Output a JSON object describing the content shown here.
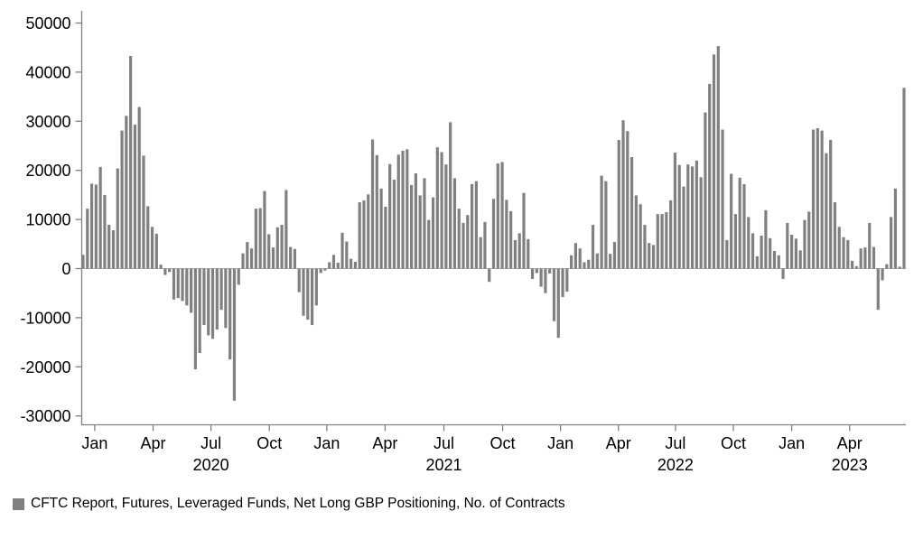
{
  "chart_data": {
    "type": "bar",
    "title": "",
    "description": "Weekly net long GBP positioning of leveraged funds (CFTC futures report), number of contracts",
    "frequency": "weekly",
    "start_date_approx": "2019-12-10",
    "bar_color": "#808080",
    "axis_color": "#808080",
    "zero_line_color": "#aaaaaa",
    "ylim": [
      -30000,
      50000
    ],
    "grid": false,
    "y_axis": {
      "ticks": [
        50000,
        40000,
        30000,
        20000,
        10000,
        0,
        -10000,
        -20000,
        -30000
      ]
    },
    "x_axis": {
      "month_ticks": [
        {
          "label": "Jan",
          "week_index": 2.7
        },
        {
          "label": "Apr",
          "week_index": 16.2
        },
        {
          "label": "Jul",
          "week_index": 29.6
        },
        {
          "label": "Oct",
          "week_index": 43.1
        },
        {
          "label": "Jan",
          "week_index": 56.4
        },
        {
          "label": "Apr",
          "week_index": 69.9
        },
        {
          "label": "Jul",
          "week_index": 83.5
        },
        {
          "label": "Oct",
          "week_index": 97.1
        },
        {
          "label": "Jan",
          "week_index": 110.5
        },
        {
          "label": "Apr",
          "week_index": 123.9
        },
        {
          "label": "Jul",
          "week_index": 137.1
        },
        {
          "label": "Oct",
          "week_index": 150.5
        },
        {
          "label": "Jan",
          "week_index": 164.0
        },
        {
          "label": "Apr",
          "week_index": 177.4
        }
      ],
      "year_labels": [
        {
          "label": "2020",
          "week_index": 29.6
        },
        {
          "label": "2021",
          "week_index": 83.5
        },
        {
          "label": "2022",
          "week_index": 137.1
        },
        {
          "label": "2023",
          "week_index": 177.4
        }
      ]
    },
    "values": [
      2800,
      12200,
      17300,
      17100,
      20700,
      15000,
      8900,
      7800,
      20400,
      28100,
      31100,
      43300,
      29300,
      32900,
      23000,
      12700,
      8500,
      7100,
      800,
      -1300,
      -700,
      -6300,
      -6000,
      -6600,
      -7500,
      -9000,
      -20500,
      -17200,
      -11500,
      -13600,
      -14300,
      -12400,
      -8400,
      -12100,
      -18500,
      -26900,
      -3300,
      3100,
      5400,
      4100,
      12200,
      12300,
      15800,
      7000,
      4300,
      8400,
      8900,
      16000,
      4400,
      4000,
      -4800,
      -9600,
      -10400,
      -11500,
      -7500,
      -900,
      -400,
      1300,
      2800,
      1200,
      7300,
      5500,
      2000,
      1400,
      13500,
      13900,
      15100,
      26300,
      23100,
      16300,
      12600,
      21300,
      18100,
      23200,
      24000,
      24300,
      17000,
      19400,
      14900,
      18400,
      9900,
      14500,
      24700,
      23700,
      21200,
      29800,
      18400,
      12200,
      9300,
      10900,
      17200,
      17800,
      6400,
      9500,
      -2700,
      14200,
      21400,
      21700,
      14000,
      11700,
      5800,
      7200,
      15400,
      6000,
      -2100,
      -900,
      -3700,
      -5000,
      -1000,
      -10700,
      -14100,
      -5800,
      -4700,
      2700,
      5200,
      4100,
      1300,
      1800,
      8900,
      3100,
      18900,
      17800,
      3000,
      5400,
      26200,
      30200,
      28000,
      22700,
      14900,
      13100,
      8900,
      5200,
      4800,
      11100,
      11100,
      11500,
      13900,
      23600,
      21100,
      16700,
      21200,
      20800,
      22000,
      18600,
      31800,
      37600,
      43600,
      45300,
      28300,
      5800,
      19300,
      11100,
      18500,
      17200,
      10500,
      7200,
      2500,
      6700,
      11900,
      6200,
      3600,
      2700,
      -2100,
      9300,
      6900,
      6100,
      3700,
      9900,
      11600,
      28300,
      28600,
      28100,
      23500,
      26200,
      13500,
      8500,
      6400,
      5800,
      1600,
      500,
      4100,
      4300,
      9300,
      4400,
      -8400,
      -2400,
      900,
      10500,
      16300,
      400,
      36800
    ],
    "legend": {
      "swatch_color": "#808080",
      "label": "CFTC Report, Futures, Leveraged Funds, Net Long GBP Positioning, No. of Contracts"
    }
  }
}
